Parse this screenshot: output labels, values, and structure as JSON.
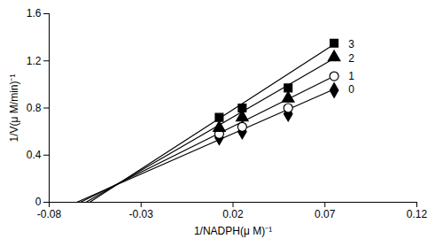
{
  "chart_data": {
    "type": "line",
    "x_label": "1/NADPH(μ M)⁻¹",
    "y_label": "1/V(μ M/min)⁻¹",
    "xlim": [
      -0.08,
      0.12
    ],
    "xticks": [
      -0.08,
      -0.03,
      0.02,
      0.07,
      0.12
    ],
    "ylim": [
      0,
      1.6
    ],
    "yticks": [
      0,
      0.4,
      0.8,
      1.2,
      1.6
    ],
    "grid": false,
    "x": [
      0.0125,
      0.025,
      0.05,
      0.075
    ],
    "series": [
      {
        "name": "0",
        "color": "#000000",
        "marker": "diamond",
        "values": [
          0.55,
          0.6,
          0.75,
          0.95
        ],
        "fit_x": [
          -0.065,
          0.075
        ],
        "fit_values": [
          0,
          0.96
        ]
      },
      {
        "name": "1",
        "color": "#000000",
        "marker": "circle-open",
        "values": [
          0.58,
          0.64,
          0.8,
          1.07
        ],
        "fit_x": [
          -0.063,
          0.075
        ],
        "fit_values": [
          0,
          1.07
        ]
      },
      {
        "name": "2",
        "color": "#000000",
        "marker": "triangle",
        "values": [
          0.63,
          0.72,
          0.88,
          1.23
        ],
        "fit_x": [
          -0.06,
          0.075
        ],
        "fit_values": [
          0,
          1.22
        ]
      },
      {
        "name": "3",
        "color": "#000000",
        "marker": "square",
        "values": [
          0.72,
          0.8,
          0.97,
          1.35
        ],
        "fit_x": [
          -0.058,
          0.075
        ],
        "fit_values": [
          0,
          1.34
        ]
      }
    ]
  }
}
